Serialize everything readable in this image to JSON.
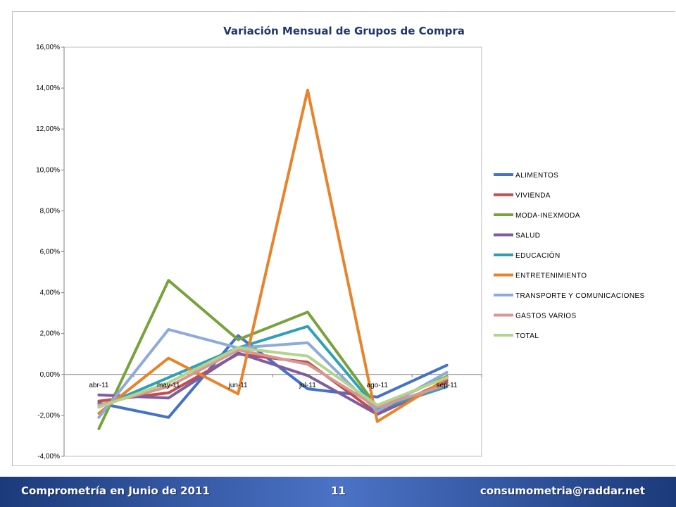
{
  "chart_data": {
    "type": "line",
    "title": "Variación Mensual de Grupos de Compra",
    "categories": [
      "abr-11",
      "may-11",
      "jun-11",
      "jul-11",
      "ago-11",
      "sep-11"
    ],
    "y_ticks": [
      "-4,00%",
      "-2,00%",
      "0,00%",
      "2,00%",
      "4,00%",
      "6,00%",
      "8,00%",
      "10,00%",
      "12,00%",
      "14,00%",
      "16,00%"
    ],
    "ylim": [
      -4,
      16
    ],
    "legend_position": "right",
    "series": [
      {
        "name": "ALIMENTOS",
        "color": "#4472c4",
        "values": [
          -1.4,
          -2.1,
          1.9,
          -0.7,
          -1.1,
          0.45
        ]
      },
      {
        "name": "VIVIENDA",
        "color": "#c0504d",
        "values": [
          -1.3,
          -0.9,
          1.0,
          0.6,
          -1.9,
          -0.3
        ]
      },
      {
        "name": "MODA-INEXMODA",
        "color": "#77a33a",
        "values": [
          -2.65,
          4.6,
          1.7,
          3.05,
          -1.6,
          -0.1
        ]
      },
      {
        "name": "SALUD",
        "color": "#7e5da0",
        "values": [
          -1.0,
          -1.15,
          1.05,
          -0.05,
          -1.95,
          -0.4
        ]
      },
      {
        "name": "EDUCACIÓN",
        "color": "#31a0b5",
        "values": [
          -1.6,
          -0.15,
          1.3,
          2.35,
          -1.7,
          -0.6
        ]
      },
      {
        "name": "ENTRETENIMIENTO",
        "color": "#e8832a",
        "values": [
          -1.9,
          0.8,
          -0.95,
          13.9,
          -2.3,
          -0.2
        ]
      },
      {
        "name": "TRANSPORTE Y COMUNICACIONES",
        "color": "#8eaadb",
        "values": [
          -2.1,
          2.2,
          1.3,
          1.55,
          -1.8,
          0.1
        ]
      },
      {
        "name": "GASTOS VARIOS",
        "color": "#d99694",
        "values": [
          -1.5,
          -0.6,
          1.2,
          0.5,
          -1.6,
          -0.5
        ]
      },
      {
        "name": "TOTAL",
        "color": "#b3d48c",
        "values": [
          -1.6,
          -0.4,
          1.3,
          0.9,
          -1.5,
          -0.15
        ]
      }
    ]
  },
  "footer": {
    "left": "Comprometría en Junio de 2011",
    "page_number": "11",
    "email": "consumometria@raddar.net"
  }
}
